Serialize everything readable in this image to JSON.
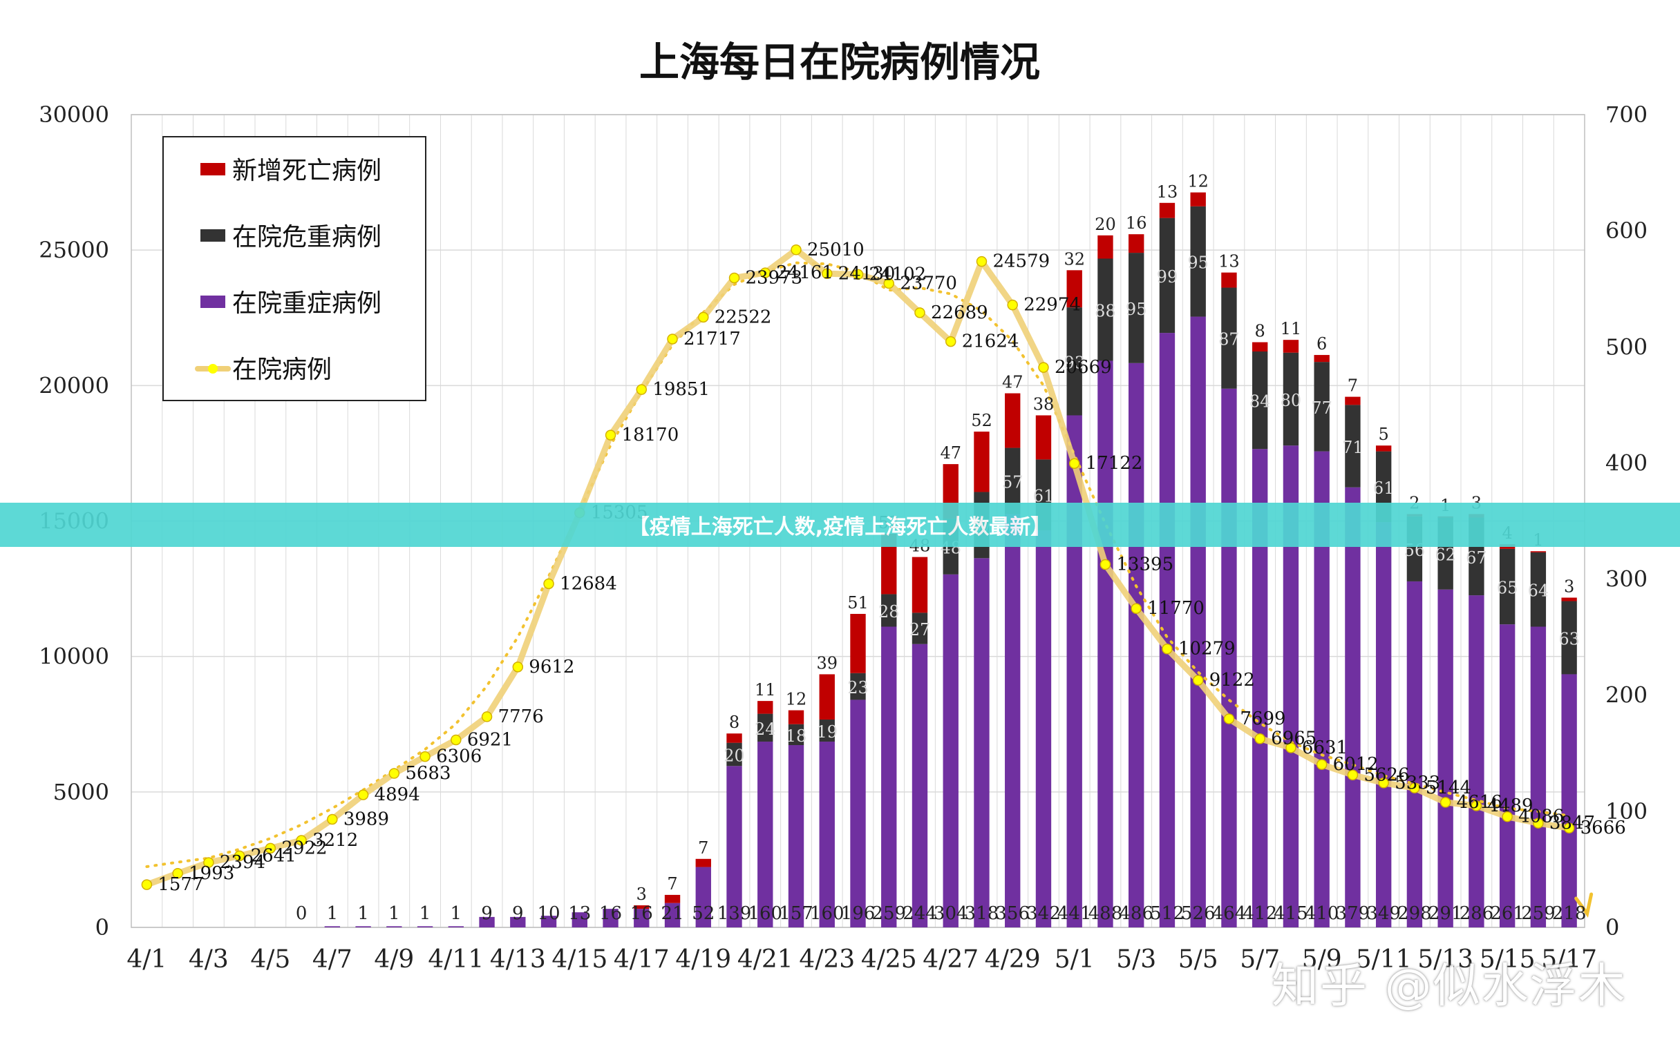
{
  "banner": {
    "text": "【疫情上海死亡人数,疫情上海死亡人数最新】"
  },
  "watermark": {
    "text": "知乎 @似水浮木"
  },
  "colors": {
    "death": "#c00000",
    "critical": "#333333",
    "severe": "#7030a0",
    "hospitalized_line": "#f0d078",
    "hospitalized_marker": "#ffff00",
    "trend_dotted": "#f2c230",
    "grid": "#d9d9d9",
    "axis_text": "#222222",
    "banner": "#4fd6d3"
  },
  "chart_data": {
    "type": "bar",
    "title": "上海每日在院病例情况",
    "grid": true,
    "legend_position": "top-left",
    "legend": [
      {
        "label": "新增死亡病例",
        "kind": "bar",
        "color": "#c00000"
      },
      {
        "label": "在院危重病例",
        "kind": "bar",
        "color": "#333333"
      },
      {
        "label": "在院重症病例",
        "kind": "bar",
        "color": "#7030a0"
      },
      {
        "label": "在院病例",
        "kind": "line",
        "color": "#f0d078"
      }
    ],
    "x_tick_labels": [
      "4/1",
      "4/3",
      "4/5",
      "4/7",
      "4/9",
      "4/11",
      "4/13",
      "4/15",
      "4/17",
      "4/19",
      "4/21",
      "4/23",
      "4/25",
      "4/27",
      "4/29",
      "5/1",
      "5/3",
      "5/5",
      "5/7",
      "5/9",
      "5/11",
      "5/13",
      "5/15",
      "5/17"
    ],
    "categories": [
      "4/1",
      "4/2",
      "4/3",
      "4/4",
      "4/5",
      "4/6",
      "4/7",
      "4/8",
      "4/9",
      "4/10",
      "4/11",
      "4/12",
      "4/13",
      "4/14",
      "4/15",
      "4/16",
      "4/17",
      "4/18",
      "4/19",
      "4/20",
      "4/21",
      "4/22",
      "4/23",
      "4/24",
      "4/25",
      "4/26",
      "4/27",
      "4/28",
      "4/29",
      "4/30",
      "5/1",
      "5/2",
      "5/3",
      "5/4",
      "5/5",
      "5/6",
      "5/7",
      "5/8",
      "5/9",
      "5/10",
      "5/11",
      "5/12",
      "5/13",
      "5/14",
      "5/15",
      "5/16",
      "5/17"
    ],
    "y_left": {
      "min": 0,
      "max": 30000,
      "ticks": [
        0,
        5000,
        10000,
        15000,
        20000,
        25000,
        30000
      ]
    },
    "y_right": {
      "min": 0,
      "max": 700,
      "ticks": [
        0,
        100,
        200,
        300,
        400,
        500,
        600,
        700
      ]
    },
    "series": [
      {
        "name": "在院病例",
        "axis": "left",
        "type": "line",
        "values": [
          1577,
          1993,
          2394,
          2641,
          2922,
          3212,
          3989,
          4894,
          5683,
          6306,
          6921,
          7776,
          9612,
          12684,
          15305,
          18170,
          19851,
          21717,
          22522,
          23973,
          24161,
          25010,
          24130,
          24102,
          23770,
          22689,
          21624,
          24579,
          22974,
          20669,
          17122,
          13395,
          11770,
          10279,
          9122,
          7699,
          6965,
          6631,
          6012,
          5626,
          5333,
          5144,
          4616,
          4489,
          4086,
          3847,
          3666
        ]
      },
      {
        "name": "在院重症病例",
        "axis": "right",
        "type": "bar",
        "labels": [
          "",
          "",
          "",
          "",
          "",
          "0",
          "1",
          "1",
          "1",
          "1",
          "1",
          "9",
          "9",
          "10",
          "13",
          "16",
          "16",
          "21",
          "52",
          "139",
          "160",
          "157",
          "160",
          "196",
          "259",
          "244",
          "304",
          "318",
          "356",
          "342",
          "441",
          "488",
          "486",
          "512",
          "526",
          "464",
          "412",
          "415",
          "410",
          "379",
          "349",
          "298",
          "291",
          "286",
          "261",
          "259",
          "218"
        ],
        "values": [
          0,
          0,
          0,
          0,
          0,
          0,
          1,
          1,
          1,
          1,
          1,
          9,
          9,
          10,
          13,
          16,
          16,
          21,
          52,
          139,
          160,
          157,
          160,
          196,
          259,
          244,
          304,
          318,
          356,
          342,
          441,
          488,
          486,
          512,
          526,
          464,
          412,
          415,
          410,
          379,
          349,
          298,
          291,
          286,
          261,
          259,
          218
        ]
      },
      {
        "name": "在院危重病例",
        "axis": "right",
        "type": "bar",
        "labels": [
          "",
          "",
          "",
          "",
          "",
          "",
          "",
          "",
          "",
          "",
          "",
          "",
          "",
          "",
          "",
          "",
          "",
          "",
          "",
          "20",
          "24",
          "18",
          "19",
          "23",
          "28",
          "27",
          "48",
          "57",
          "57",
          "61",
          "93",
          "88",
          "95",
          "99",
          "95",
          "87",
          "84",
          "80",
          "77",
          "71",
          "61",
          "56",
          "62",
          "67",
          "65",
          "64",
          "63"
        ],
        "values": [
          0,
          0,
          0,
          0,
          0,
          0,
          0,
          0,
          0,
          0,
          0,
          0,
          0,
          0,
          0,
          0,
          0,
          0,
          0,
          20,
          24,
          18,
          19,
          23,
          28,
          27,
          48,
          57,
          57,
          61,
          93,
          88,
          95,
          99,
          95,
          87,
          84,
          80,
          77,
          71,
          61,
          56,
          62,
          67,
          65,
          64,
          63
        ]
      },
      {
        "name": "新增死亡病例",
        "axis": "right",
        "type": "bar",
        "labels": [
          "",
          "",
          "",
          "",
          "",
          "",
          "",
          "",
          "",
          "",
          "",
          "",
          "",
          "",
          "",
          "",
          "3",
          "7",
          "7",
          "8",
          "11",
          "12",
          "39",
          "51",
          "52",
          "48",
          "47",
          "52",
          "47",
          "38",
          "32",
          "20",
          "16",
          "13",
          "12",
          "13",
          "8",
          "11",
          "6",
          "7",
          "5",
          "2",
          "1",
          "3",
          "4",
          "1",
          "3"
        ],
        "values": [
          0,
          0,
          0,
          0,
          0,
          0,
          0,
          0,
          0,
          0,
          0,
          0,
          0,
          0,
          0,
          0,
          3,
          7,
          7,
          8,
          11,
          12,
          39,
          51,
          52,
          48,
          47,
          52,
          47,
          38,
          32,
          20,
          16,
          13,
          12,
          13,
          8,
          11,
          6,
          7,
          5,
          2,
          1,
          3,
          4,
          1,
          3
        ]
      }
    ]
  }
}
